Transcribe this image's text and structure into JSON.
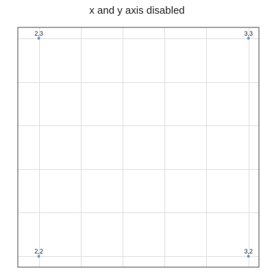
{
  "chart_data": {
    "type": "scatter",
    "title": "x and y axis disabled",
    "xlabel": "",
    "ylabel": "",
    "xlim": [
      1.9,
      3.05
    ],
    "ylim": [
      1.95,
      3.05
    ],
    "axes_visible": false,
    "grid": true,
    "grid_columns": 6,
    "grid_rows": 6,
    "series": [
      {
        "values": [
          {
            "x": 2,
            "y": 3,
            "label": "2,3"
          },
          {
            "x": 3,
            "y": 3,
            "label": "3,3"
          },
          {
            "x": 2,
            "y": 2,
            "label": "2,2"
          },
          {
            "x": 3,
            "y": 2,
            "label": "3,2"
          }
        ]
      }
    ],
    "colors": {
      "point": "#5b9bd5",
      "grid": "#dedede",
      "frame": "#444444"
    }
  }
}
